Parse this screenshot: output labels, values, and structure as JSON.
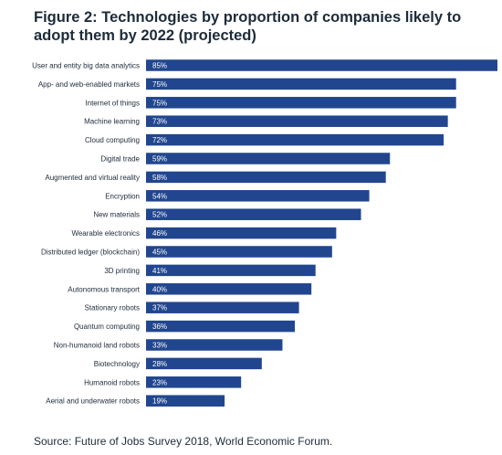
{
  "title": "Figure 2: Technologies by proportion of companies likely to adopt them by 2022 (projected)",
  "source": "Source: Future of Jobs Survey 2018, World Economic Forum.",
  "colors": {
    "bar": "#21468f",
    "text": "#1d2b3a",
    "value_text": "#ffffff"
  },
  "chart_data": {
    "type": "bar",
    "orientation": "horizontal",
    "categories": [
      "User and entity big data analytics",
      "App- and web-enabled markets",
      "Internet of things",
      "Machine learning",
      "Cloud computing",
      "Digital trade",
      "Augmented and virtual reality",
      "Encryption",
      "New materials",
      "Wearable electronics",
      "Distributed ledger (blockchain)",
      "3D printing",
      "Autonomous transport",
      "Stationary robots",
      "Quantum computing",
      "Non-humanoid land robots",
      "Biotechnology",
      "Humanoid robots",
      "Aerial and underwater robots"
    ],
    "values": [
      85,
      75,
      75,
      73,
      72,
      59,
      58,
      54,
      52,
      46,
      45,
      41,
      40,
      37,
      36,
      33,
      28,
      23,
      19
    ],
    "value_labels": [
      "85%",
      "75%",
      "75%",
      "73%",
      "72%",
      "59%",
      "58%",
      "54%",
      "52%",
      "46%",
      "45%",
      "41%",
      "40%",
      "37%",
      "36%",
      "33%",
      "28%",
      "23%",
      "19%"
    ],
    "xlim": [
      0,
      85
    ],
    "grid": false,
    "legend": "none"
  }
}
